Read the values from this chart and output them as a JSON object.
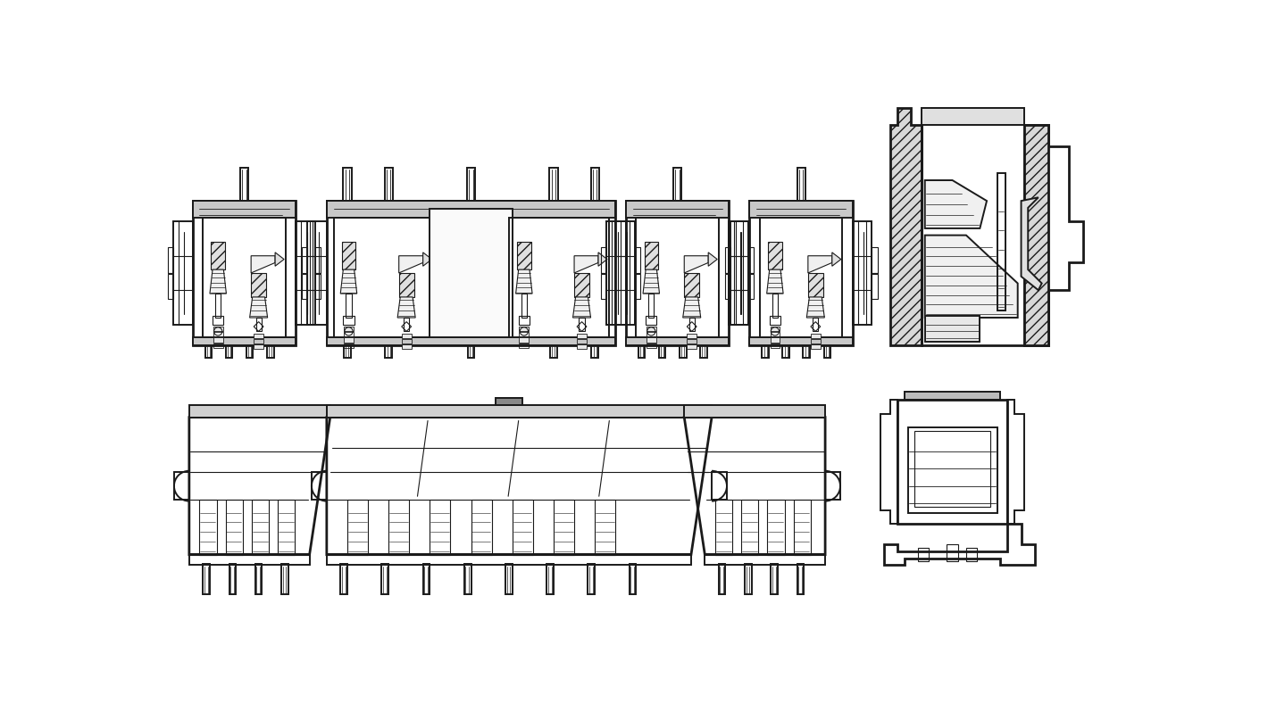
{
  "background_color": "#ffffff",
  "line_color": "#1a1a1a",
  "fig_width": 14.2,
  "fig_height": 7.98,
  "dpi": 100
}
